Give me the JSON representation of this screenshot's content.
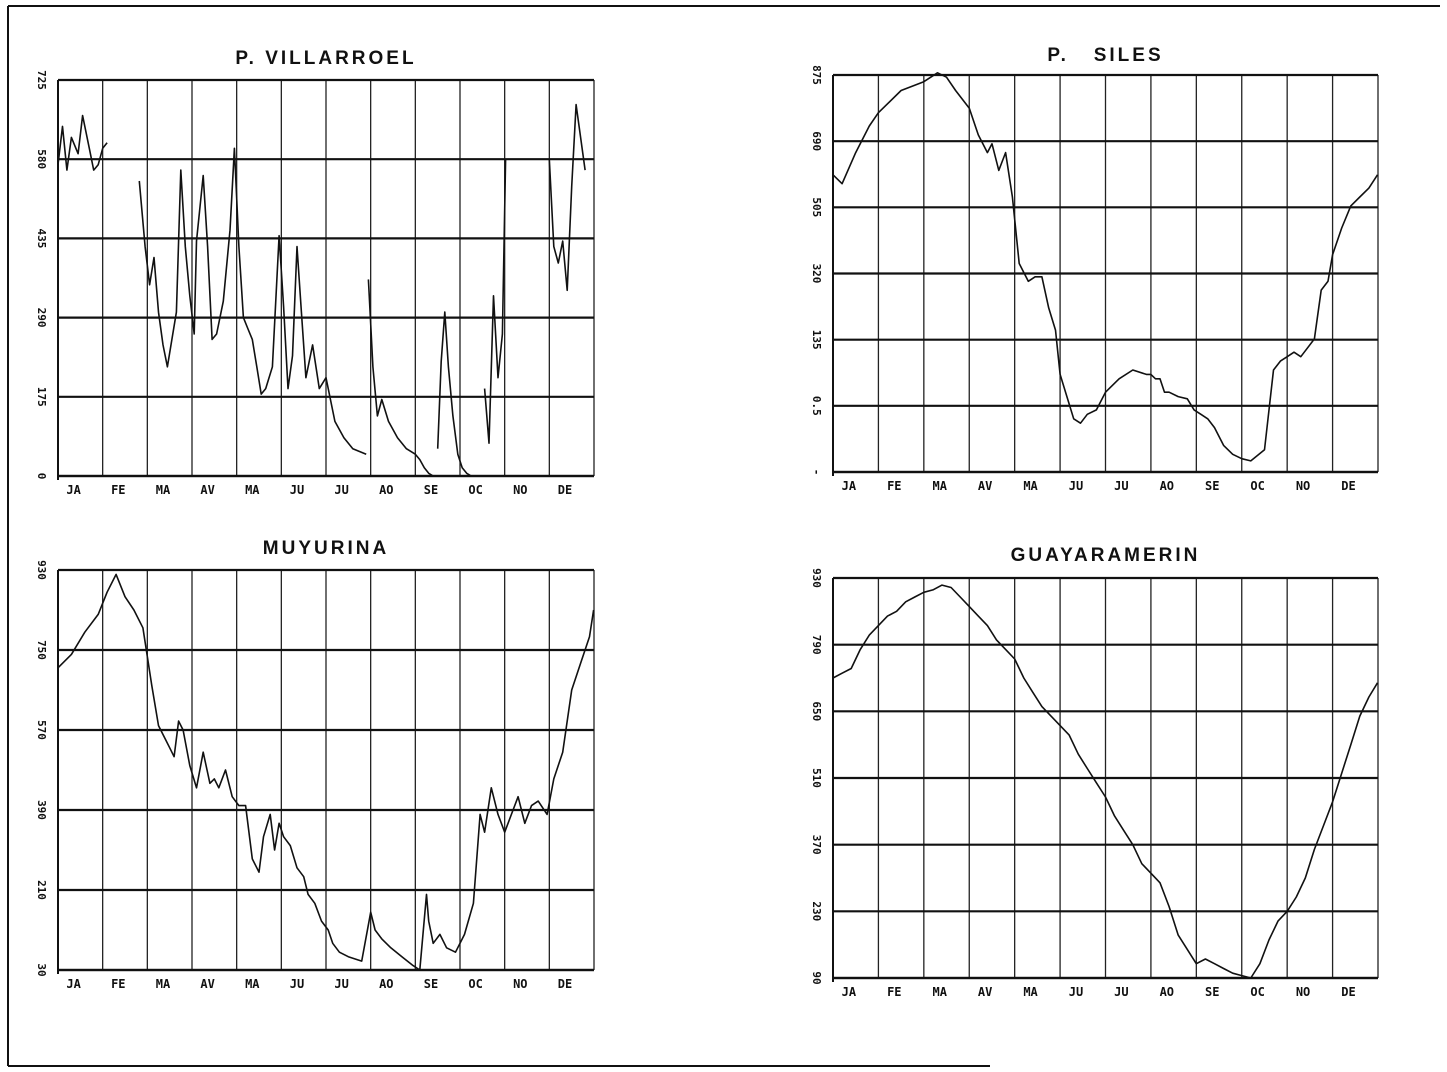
{
  "chart_data": [
    {
      "type": "line",
      "title": "P. VILLARROEL",
      "categories": [
        "JA",
        "FE",
        "MA",
        "AV",
        "MA",
        "JU",
        "JU",
        "AO",
        "SE",
        "OC",
        "NO",
        "DE"
      ],
      "y_tick_labels": [
        "0",
        "175",
        "290",
        "435",
        "580",
        "725"
      ],
      "ylim": [
        0,
        725
      ],
      "grid": true,
      "segments": [
        {
          "x": [
            0.0,
            0.1,
            0.2,
            0.3,
            0.45,
            0.55,
            0.7,
            0.8,
            0.9,
            1.0,
            1.1
          ],
          "y": [
            570,
            640,
            560,
            620,
            590,
            660,
            600,
            560,
            570,
            600,
            610
          ]
        },
        {
          "x": [
            1.82,
            1.95,
            2.05,
            2.15,
            2.25,
            2.35,
            2.45,
            2.55,
            2.65,
            2.75,
            2.85,
            2.95,
            3.05,
            3.1,
            3.25,
            3.35,
            3.45,
            3.55,
            3.7,
            3.85,
            3.95,
            4.05,
            4.15,
            4.25,
            4.35,
            4.45,
            4.55,
            4.65,
            4.8,
            4.95,
            5.05,
            5.15,
            5.25,
            5.35,
            5.45,
            5.55,
            5.7,
            5.85,
            6.0,
            6.2,
            6.4,
            6.6,
            6.9
          ],
          "y": [
            540,
            420,
            350,
            400,
            300,
            240,
            200,
            250,
            300,
            560,
            420,
            330,
            260,
            430,
            550,
            420,
            250,
            260,
            320,
            450,
            600,
            420,
            290,
            270,
            250,
            200,
            150,
            160,
            200,
            440,
            310,
            160,
            220,
            420,
            300,
            180,
            240,
            160,
            180,
            100,
            70,
            50,
            40
          ]
        },
        {
          "x": [
            6.95,
            7.05,
            7.15,
            7.25,
            7.4,
            7.6,
            7.8,
            8.0,
            8.1,
            8.2,
            8.3,
            8.4
          ],
          "y": [
            360,
            200,
            110,
            140,
            100,
            70,
            50,
            40,
            30,
            15,
            5,
            0
          ]
        },
        {
          "x": [
            8.5,
            8.58,
            8.66,
            8.74,
            8.84,
            8.95,
            9.05,
            9.15,
            9.25
          ],
          "y": [
            50,
            210,
            300,
            200,
            110,
            40,
            15,
            5,
            0
          ]
        },
        {
          "x": [
            9.55,
            9.65,
            9.75,
            9.85,
            9.95,
            10.02
          ],
          "y": [
            160,
            60,
            330,
            180,
            260,
            580
          ]
        },
        {
          "x": [
            11.0,
            11.1,
            11.2,
            11.3,
            11.4,
            11.5,
            11.6,
            11.8
          ],
          "y": [
            580,
            420,
            390,
            430,
            340,
            530,
            680,
            560
          ]
        }
      ]
    },
    {
      "type": "line",
      "title": "P.   SILES",
      "categories": [
        "JA",
        "FE",
        "MA",
        "AV",
        "MA",
        "JU",
        "JU",
        "AO",
        "SE",
        "OC",
        "NO",
        "DE"
      ],
      "y_tick_labels": [
        "-",
        "0.5",
        "135",
        "320",
        "505",
        "690",
        "875"
      ],
      "ylim": [
        -20,
        875
      ],
      "grid": true,
      "segments": [
        {
          "x": [
            0.0,
            0.2,
            0.5,
            0.8,
            1.0,
            1.5,
            2.0,
            2.3,
            2.5,
            2.7,
            3.0,
            3.2,
            3.4,
            3.5,
            3.65,
            3.8,
            3.95,
            4.1,
            4.3,
            4.45,
            4.6,
            4.75,
            4.9,
            5.0,
            5.15,
            5.3,
            5.45,
            5.6,
            5.8,
            6.0,
            6.3,
            6.6,
            6.9,
            7.0,
            7.1,
            7.2,
            7.3,
            7.4,
            7.6,
            7.8,
            7.95,
            8.1,
            8.25,
            8.4,
            8.6,
            8.8,
            9.0,
            9.2,
            9.5,
            9.7,
            9.85,
            10.0,
            10.15,
            10.3,
            10.45,
            10.6,
            10.75,
            10.9,
            11.0,
            11.2,
            11.4,
            11.6,
            11.8,
            11.99
          ],
          "y": [
            650,
            630,
            700,
            760,
            790,
            840,
            860,
            880,
            870,
            840,
            800,
            740,
            700,
            720,
            660,
            700,
            600,
            450,
            410,
            420,
            420,
            350,
            300,
            200,
            150,
            100,
            90,
            110,
            120,
            160,
            190,
            210,
            200,
            200,
            190,
            190,
            160,
            160,
            150,
            145,
            120,
            110,
            100,
            80,
            40,
            20,
            10,
            5,
            30,
            210,
            230,
            240,
            250,
            240,
            260,
            280,
            390,
            410,
            470,
            530,
            580,
            600,
            620,
            650
          ]
        }
      ]
    },
    {
      "type": "line",
      "title": "MUYURINA",
      "categories": [
        "JA",
        "FE",
        "MA",
        "AV",
        "MA",
        "JU",
        "JU",
        "AO",
        "SE",
        "OC",
        "NO",
        "DE"
      ],
      "y_tick_labels": [
        "30",
        "210",
        "390",
        "570",
        "750",
        "930"
      ],
      "ylim": [
        30,
        930
      ],
      "grid": true,
      "segments": [
        {
          "x": [
            0.0,
            0.3,
            0.6,
            0.9,
            1.1,
            1.3,
            1.5,
            1.7,
            1.9,
            2.1,
            2.25,
            2.4,
            2.5,
            2.6,
            2.7,
            2.8,
            2.95,
            3.1,
            3.25,
            3.4,
            3.5,
            3.6,
            3.75,
            3.9,
            4.05,
            4.2,
            4.35,
            4.5,
            4.6,
            4.75,
            4.85,
            4.95,
            5.05,
            5.2,
            5.35,
            5.5,
            5.6,
            5.75,
            5.9,
            6.05,
            6.15,
            6.3,
            6.5,
            6.8,
            7.0,
            7.1,
            7.25,
            7.45,
            7.7,
            7.95,
            8.1,
            8.25,
            8.3,
            8.4,
            8.55,
            8.7,
            8.9,
            9.1,
            9.3,
            9.45,
            9.55,
            9.7,
            9.85,
            10.0,
            10.15,
            10.3,
            10.45,
            10.6,
            10.75,
            10.95,
            11.1,
            11.3,
            11.5,
            11.7,
            11.9,
            11.99
          ],
          "y": [
            710,
            740,
            790,
            830,
            880,
            920,
            870,
            840,
            800,
            670,
            580,
            550,
            530,
            510,
            590,
            570,
            490,
            440,
            520,
            450,
            460,
            440,
            480,
            420,
            400,
            400,
            280,
            250,
            330,
            380,
            300,
            360,
            330,
            310,
            260,
            240,
            200,
            180,
            140,
            120,
            90,
            70,
            60,
            50,
            160,
            120,
            100,
            80,
            60,
            40,
            30,
            200,
            140,
            90,
            110,
            80,
            70,
            110,
            180,
            380,
            340,
            440,
            380,
            340,
            380,
            420,
            360,
            400,
            410,
            380,
            460,
            520,
            660,
            720,
            780,
            840
          ]
        }
      ]
    },
    {
      "type": "line",
      "title": "GUAYARAMERIN",
      "categories": [
        "JA",
        "FE",
        "MA",
        "AV",
        "MA",
        "JU",
        "JU",
        "AO",
        "SE",
        "OC",
        "NO",
        "DE"
      ],
      "y_tick_labels": [
        "90",
        "230",
        "370",
        "510",
        "650",
        "790",
        "930"
      ],
      "ylim": [
        90,
        930
      ],
      "grid": true,
      "segments": [
        {
          "x": [
            0.0,
            0.2,
            0.4,
            0.6,
            0.8,
            1.0,
            1.2,
            1.4,
            1.6,
            1.8,
            2.0,
            2.2,
            2.4,
            2.6,
            2.8,
            3.0,
            3.2,
            3.4,
            3.6,
            3.8,
            4.0,
            4.2,
            4.4,
            4.6,
            4.8,
            5.0,
            5.2,
            5.4,
            5.6,
            5.8,
            6.0,
            6.2,
            6.4,
            6.6,
            6.8,
            7.0,
            7.2,
            7.4,
            7.6,
            7.8,
            8.0,
            8.2,
            8.4,
            8.6,
            8.8,
            9.0,
            9.2,
            9.4,
            9.6,
            9.8,
            10.0,
            10.2,
            10.4,
            10.6,
            10.8,
            11.0,
            11.2,
            11.4,
            11.6,
            11.8,
            11.99
          ],
          "y": [
            720,
            730,
            740,
            780,
            810,
            830,
            850,
            860,
            880,
            890,
            900,
            905,
            915,
            910,
            890,
            870,
            850,
            830,
            800,
            780,
            760,
            720,
            690,
            660,
            640,
            620,
            600,
            560,
            530,
            500,
            470,
            430,
            400,
            370,
            330,
            310,
            290,
            240,
            180,
            150,
            120,
            130,
            120,
            110,
            100,
            95,
            90,
            120,
            170,
            210,
            230,
            260,
            300,
            360,
            410,
            460,
            520,
            580,
            640,
            680,
            710
          ]
        }
      ]
    }
  ]
}
